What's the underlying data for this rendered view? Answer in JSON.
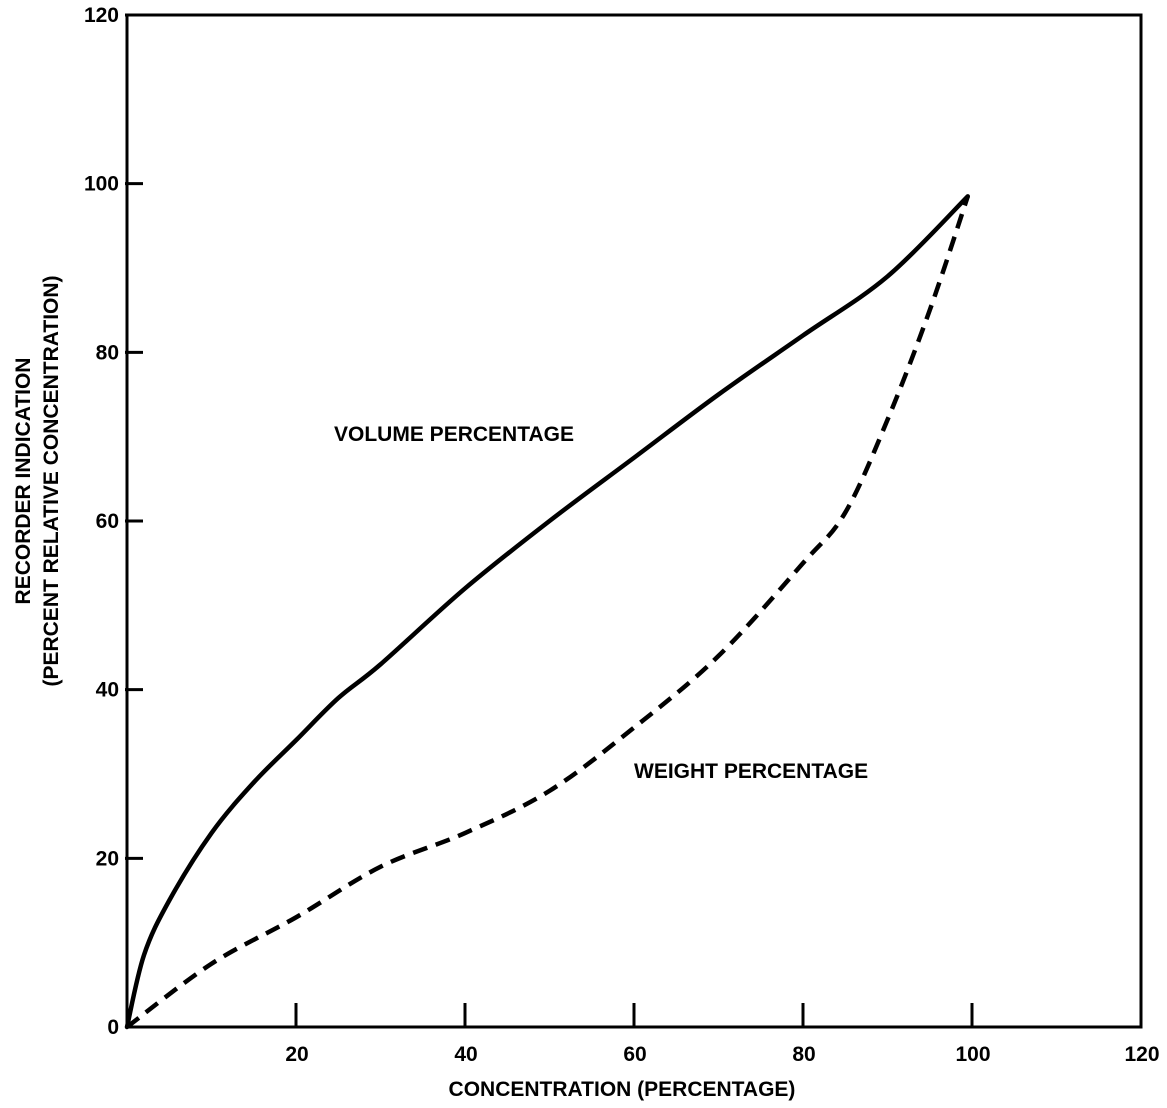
{
  "chart_data": {
    "type": "line",
    "title": "",
    "xlabel": "CONCENTRATION (PERCENTAGE)",
    "ylabel_lines": [
      "RECORDER INDICATION",
      "(PERCENT RELATIVE CONCENTRATION)"
    ],
    "xlim": [
      0,
      120
    ],
    "ylim": [
      0,
      120
    ],
    "x_ticks": [
      20,
      40,
      60,
      80,
      100,
      120
    ],
    "x_tick_labels": [
      "20",
      "40",
      "60",
      "80",
      "100",
      "120"
    ],
    "y_ticks": [
      0,
      20,
      40,
      60,
      80,
      100,
      120
    ],
    "y_tick_labels": [
      "0",
      "20",
      "40",
      "60",
      "80",
      "100",
      "120"
    ],
    "grid": false,
    "legend": "none",
    "series": [
      {
        "label": "VOLUME PERCENTAGE",
        "style": "solid",
        "color": "#000000",
        "x": [
          0,
          2,
          5,
          10,
          15,
          20,
          25,
          30,
          40,
          50,
          60,
          70,
          80,
          90,
          99.5
        ],
        "y": [
          0,
          8.5,
          15,
          23,
          29,
          34,
          39,
          43,
          52,
          60,
          67.5,
          75,
          82,
          89,
          98.5
        ]
      },
      {
        "label": "WEIGHT PERCENTAGE",
        "style": "dashed",
        "color": "#000000",
        "x": [
          0,
          10,
          20,
          30,
          40,
          50,
          60,
          70,
          80,
          85,
          90,
          95,
          99.5
        ],
        "y": [
          0,
          7.5,
          13,
          19,
          23,
          28,
          35.5,
          44,
          55,
          61,
          72,
          85,
          98.5
        ]
      }
    ],
    "annotations": [
      {
        "text": "VOLUME PERCENTAGE",
        "x": 24.5,
        "y": 69.5
      },
      {
        "text": "WEIGHT PERCENTAGE",
        "x": 60,
        "y": 29.5
      }
    ]
  }
}
